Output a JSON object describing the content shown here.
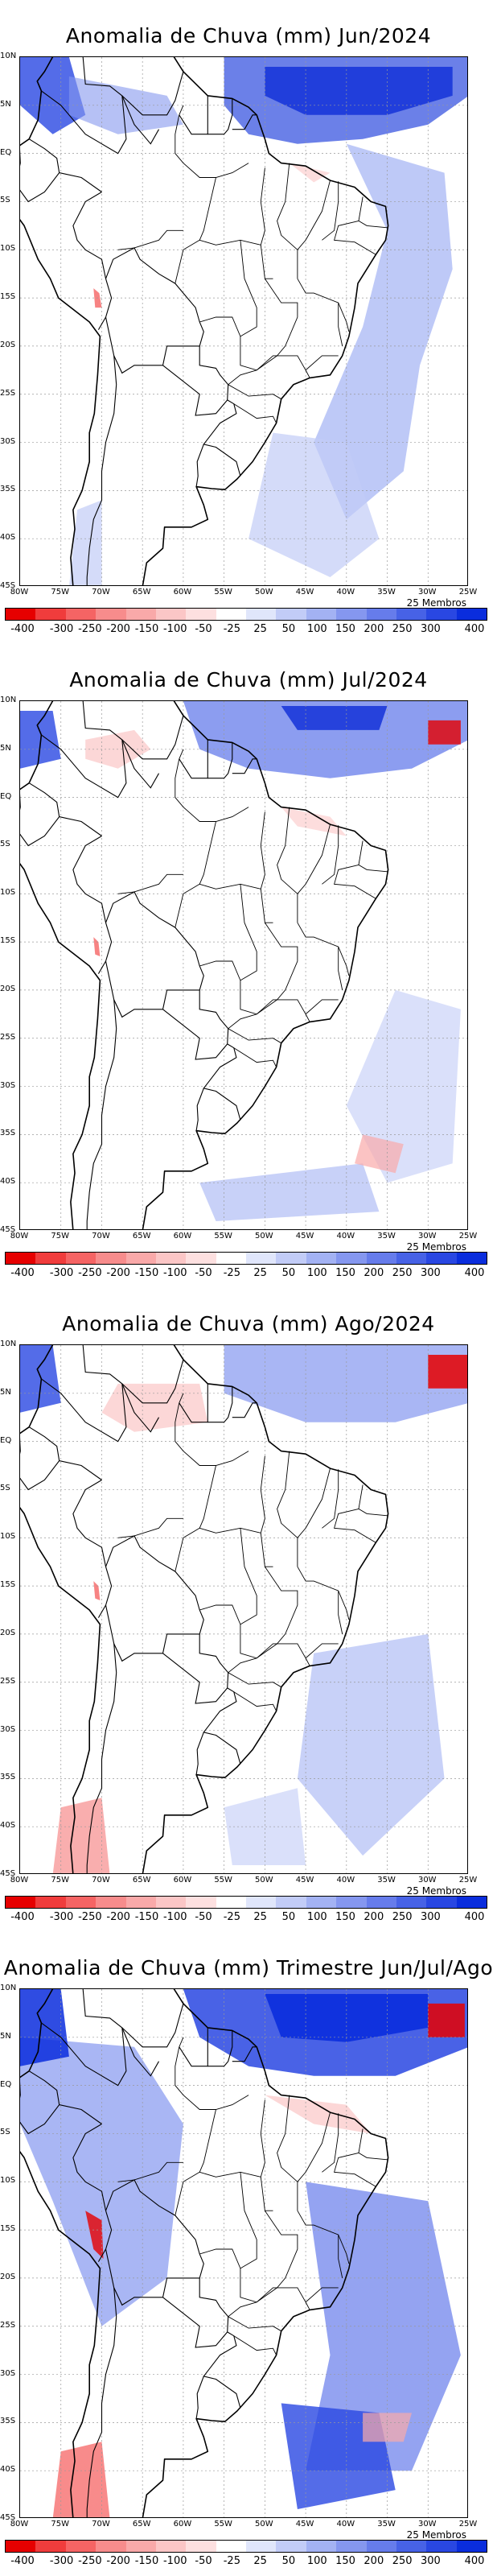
{
  "panels": [
    {
      "title": "Anomalia de Chuva (mm) Jun/2024",
      "period": "Jun/2024"
    },
    {
      "title": "Anomalia de Chuva (mm) Jul/2024",
      "period": "Jul/2024"
    },
    {
      "title": "Anomalia de Chuva (mm) Ago/2024",
      "period": "Ago/2024"
    },
    {
      "title": "Anomalia de Chuva (mm) Trimestre Jun/Jul/Ago",
      "period": "Jun/Jul/Ago"
    }
  ],
  "members_label": "25 Membros",
  "lat_labels": [
    "10N",
    "5N",
    "EQ",
    "5S",
    "10S",
    "15S",
    "20S",
    "25S",
    "30S",
    "35S",
    "40S",
    "45S"
  ],
  "lon_labels": [
    "80W",
    "75W",
    "70W",
    "65W",
    "60W",
    "55W",
    "50W",
    "45W",
    "40W",
    "35W",
    "30W",
    "25W"
  ],
  "colorbar": {
    "labels": [
      "-400",
      "-300",
      "-250",
      "-200",
      "-150",
      "-100",
      "-50",
      "-25",
      "25",
      "50",
      "100",
      "150",
      "200",
      "250",
      "300",
      "400"
    ],
    "colors": [
      "#e60000",
      "#f03c3c",
      "#f56464",
      "#f78c8c",
      "#f9a9a9",
      "#fbc6c6",
      "#fde0e0",
      "#ffffff",
      "#e0e6fb",
      "#c2ccf7",
      "#a3b2f3",
      "#8597ef",
      "#667ceb",
      "#4762e6",
      "#2947e2",
      "#0a2ddd"
    ]
  }
}
